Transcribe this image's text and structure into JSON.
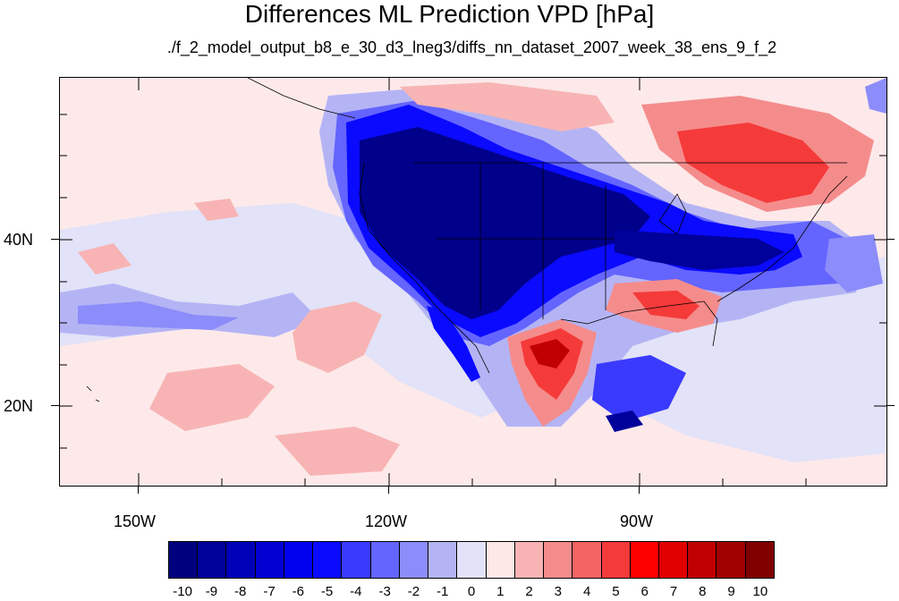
{
  "title": "Differences ML Prediction VPD [hPa]",
  "subtitle": "./f_2_model_output_b8_e_30_d3_lneg3/diffs_nn_dataset_2007_week_38_ens_9_f_2",
  "axes": {
    "lat_labels": [
      "40N",
      "20N"
    ],
    "lon_labels": [
      "150W",
      "120W",
      "90W"
    ]
  },
  "colorbar": {
    "labels": [
      "-10",
      "-9",
      "-8",
      "-7",
      "-6",
      "-5",
      "-4",
      "-3",
      "-2",
      "-1",
      "0",
      "1",
      "2",
      "3",
      "4",
      "5",
      "6",
      "7",
      "8",
      "9",
      "10"
    ],
    "colors": [
      "#00007f",
      "#00009a",
      "#0000b8",
      "#0000d3",
      "#0000ef",
      "#0a0aff",
      "#3a3aff",
      "#6464ff",
      "#8c8cfa",
      "#b4b4f5",
      "#e2e2f8",
      "#fde7e7",
      "#f8b4b4",
      "#f58c8c",
      "#f56464",
      "#f53a3a",
      "#ff0000",
      "#e00000",
      "#c00000",
      "#a00000",
      "#800000"
    ]
  },
  "palette": {
    "deep_blue": "#00008b",
    "mid_blue": "#3a3aff",
    "light_blue": "#b4b4f5",
    "pale_blue": "#e2e2f8",
    "pale_pink": "#fde7e7",
    "light_red": "#f8b4b4",
    "mid_red": "#f56464",
    "red": "#f51a1a",
    "dark_red": "#a00000"
  }
}
